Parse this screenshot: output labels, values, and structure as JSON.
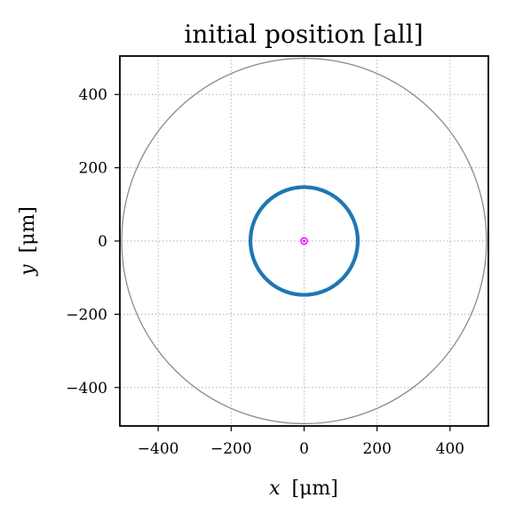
{
  "chart_data": {
    "type": "scatter",
    "title": "initial position [all]",
    "xlabel_var": "x",
    "xlabel_unit": "[μm]",
    "ylabel_var": "y",
    "ylabel_unit": "[μm]",
    "xlim": [
      -505,
      505
    ],
    "ylim": [
      -505,
      505
    ],
    "xticks": [
      -400,
      -200,
      0,
      200,
      400
    ],
    "yticks": [
      -400,
      -200,
      0,
      200,
      400
    ],
    "xtick_labels": [
      "−400",
      "−200",
      "0",
      "200",
      "400"
    ],
    "ytick_labels": [
      "−400",
      "−200",
      "0",
      "200",
      "400"
    ],
    "grid": true,
    "boundary_circle": {
      "center": [
        0,
        0
      ],
      "radius": 500,
      "color": "#8c8c8c"
    },
    "series": [
      {
        "ring": {
          "center": [
            0,
            0
          ],
          "radius": 147
        },
        "color": "#1f77b4"
      },
      {
        "point": [
          0,
          0
        ],
        "color": "#ff00ff"
      }
    ]
  }
}
